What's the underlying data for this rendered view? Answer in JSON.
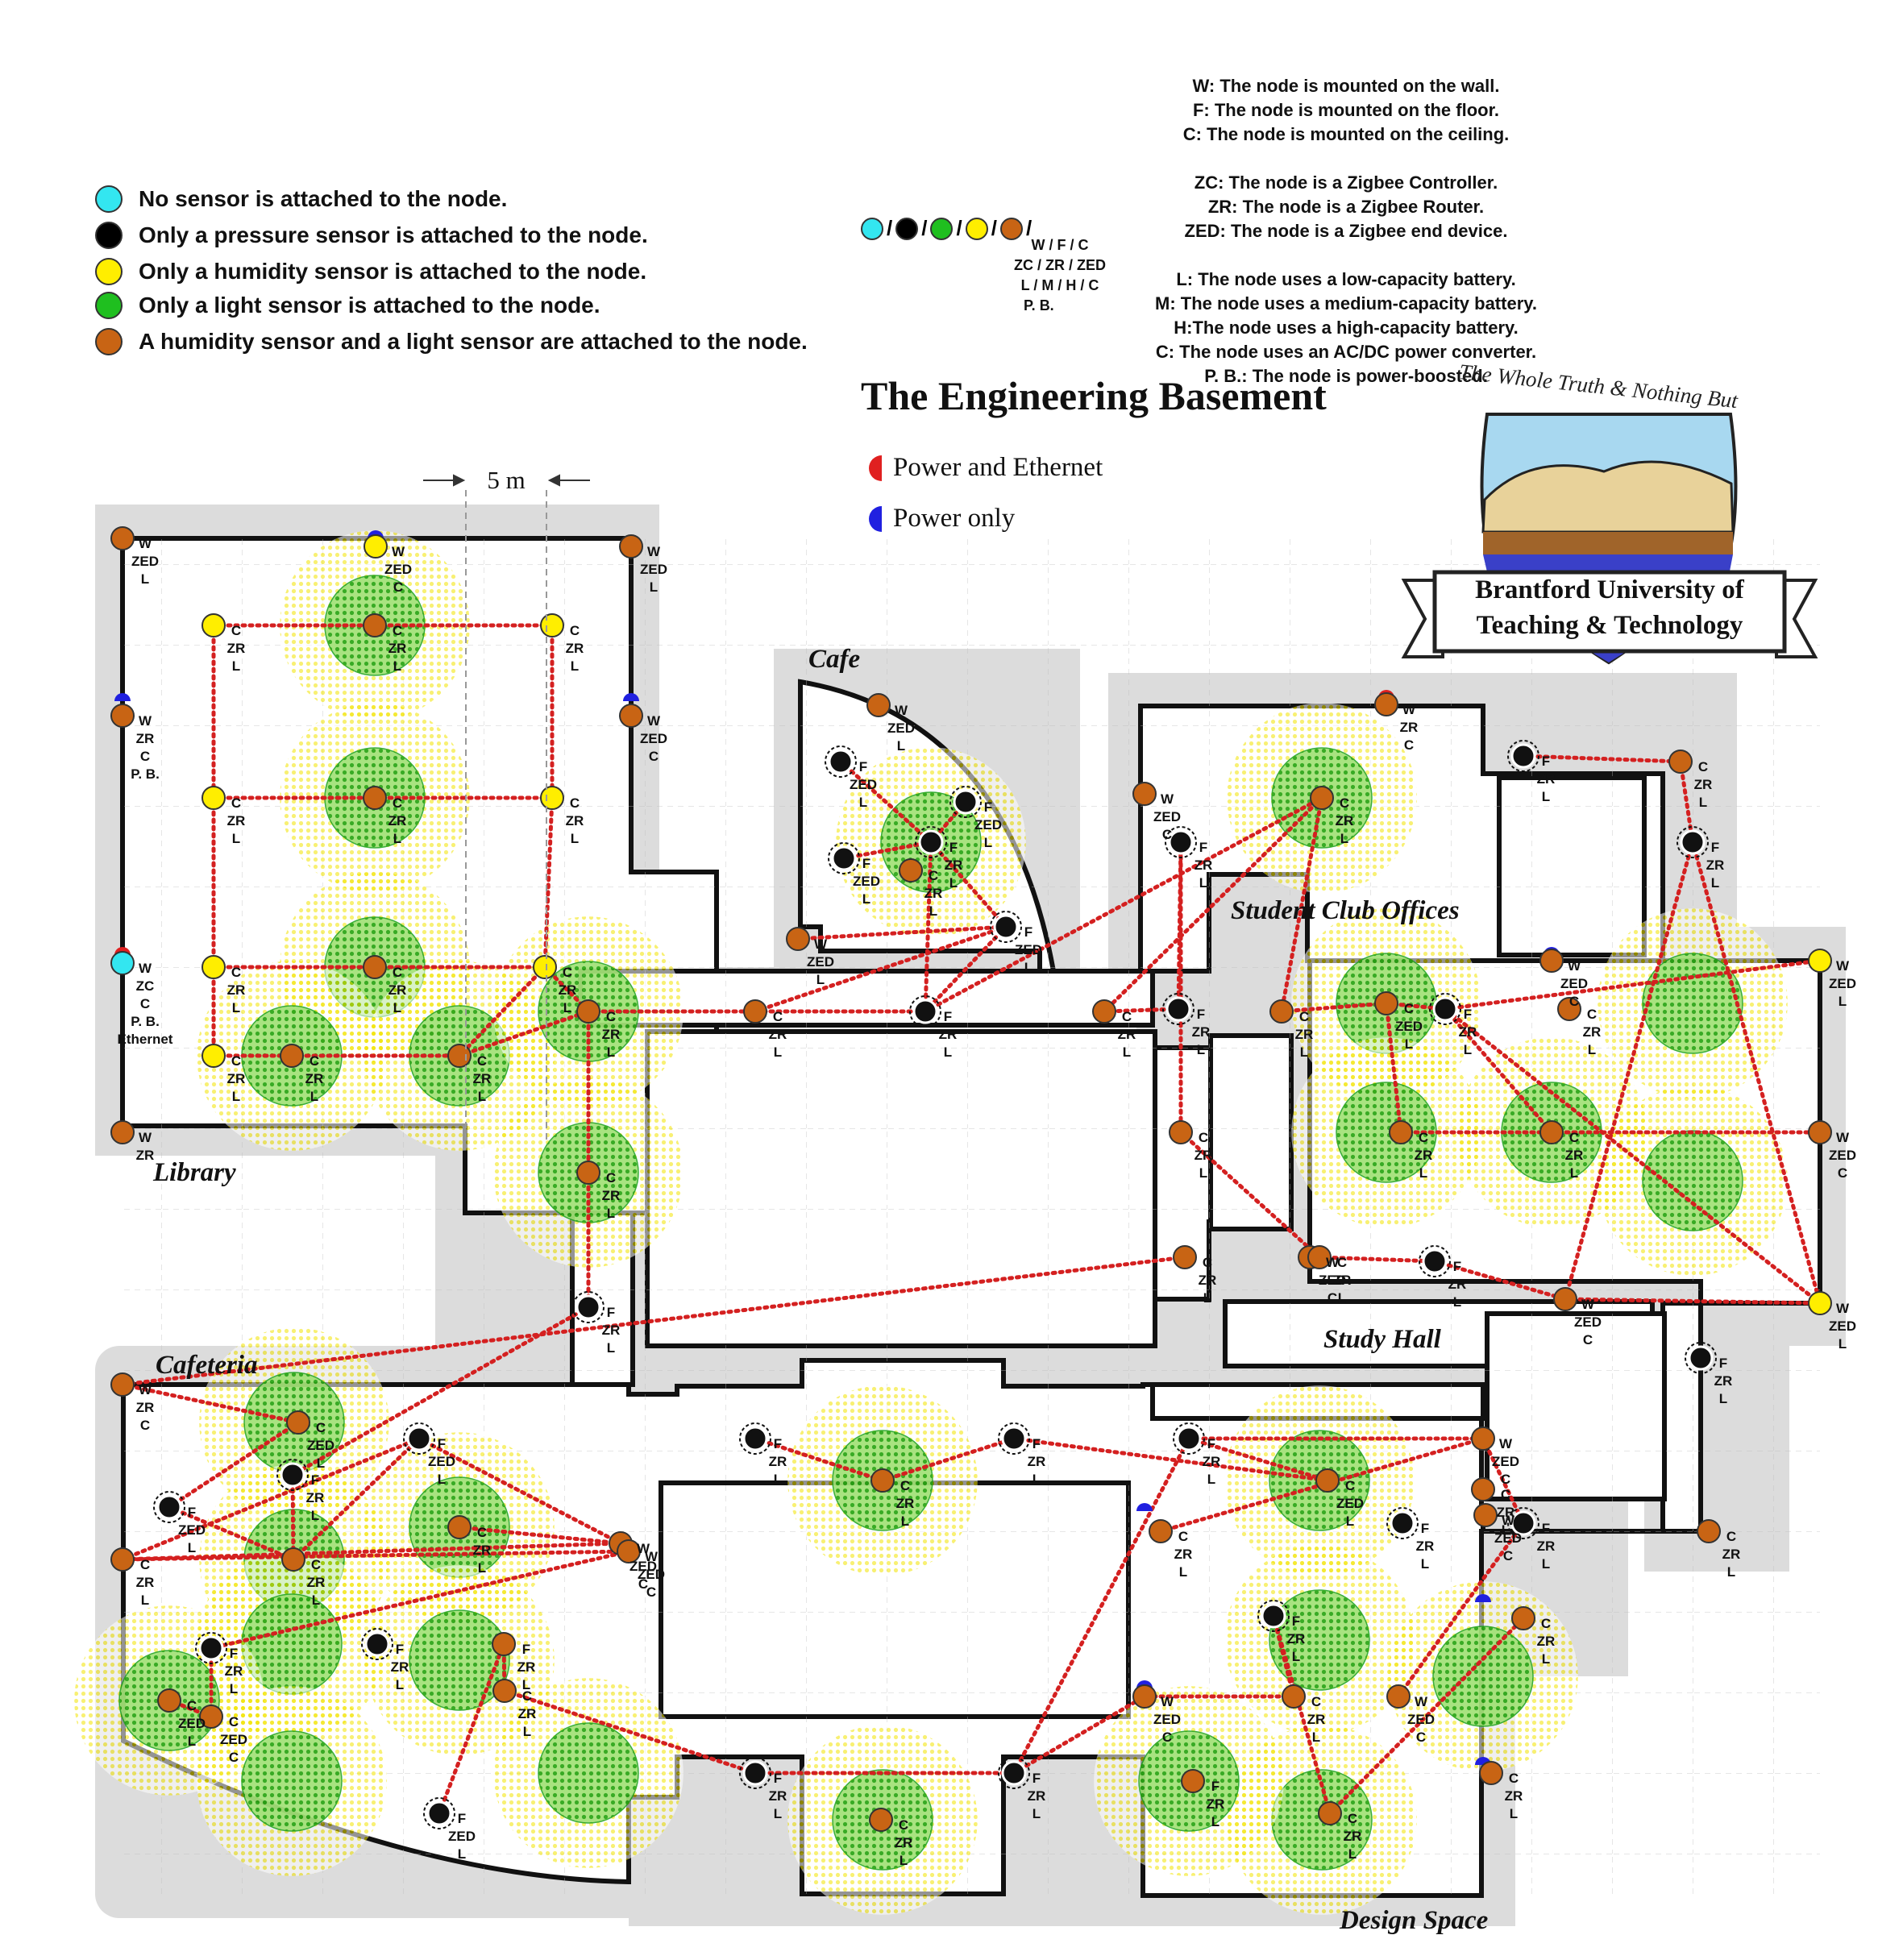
{
  "legend": {
    "items": [
      {
        "color": "#33e6f0",
        "text": "No sensor is attached to the node."
      },
      {
        "color": "#000000",
        "text": "Only a pressure sensor is attached to the node."
      },
      {
        "color": "#ffee00",
        "text": "Only a humidity sensor is attached to the node."
      },
      {
        "color": "#1fbf1f",
        "text": "Only a light sensor is attached to the node."
      },
      {
        "color": "#c86414",
        "text": "A humidity sensor and a light sensor are attached to the node."
      }
    ]
  },
  "key_symbol": {
    "sep": "/",
    "lines": [
      "W / F / C",
      "ZC / ZR / ZED",
      "L / M / H / C",
      "P. B."
    ]
  },
  "key_notes": [
    "W: The node is mounted on the wall.",
    "F: The node is mounted on the floor.",
    "C: The node is mounted on the ceiling.",
    "",
    "ZC: The node is a Zigbee Controller.",
    "ZR: The node is a Zigbee Router.",
    "ZED: The node is a Zigbee end device.",
    "",
    "L: The node uses a low-capacity battery.",
    "M: The node uses a medium-capacity battery.",
    "H:The node uses a high-capacity battery.",
    "C: The node uses an AC/DC power converter.",
    "P. B.: The node is power-boosted."
  ],
  "title": "The Engineering Basement",
  "power_legend": [
    {
      "color": "#e02020",
      "text": "Power and Ethernet"
    },
    {
      "color": "#2020e0",
      "text": "Power only"
    }
  ],
  "scale_label": "5 m",
  "logo": {
    "motto": "The Whole Truth & Nothing But",
    "line1": "Brantford University of",
    "line2": "Teaching & Technology"
  },
  "rooms": {
    "library": "Library",
    "cafe": "Cafe",
    "student_club": "Student Club Offices",
    "study_hall": "Study Hall",
    "cafeteria": "Cafeteria",
    "design_space": "Design Space"
  },
  "colors": {
    "wall": "#111111",
    "margin": "#dcdcdc",
    "link": "#d42020",
    "light_zone": "#1fbf1f",
    "humid_zone": "#ffee00"
  },
  "node_types": {
    "L": "l",
    "P": "p",
    "H": "h",
    "B": "b",
    "N": "n"
  },
  "nodes": [
    {
      "t": "B",
      "lines": [
        "W",
        "ZED",
        "L"
      ]
    },
    {
      "t": "H",
      "lines": [
        "W",
        "ZED",
        "C"
      ]
    },
    {
      "t": "B",
      "lines": [
        "W",
        "ZED",
        "L"
      ]
    },
    {
      "t": "H",
      "lines": [
        "C",
        "ZR",
        "L"
      ]
    },
    {
      "t": "B",
      "lines": [
        "C",
        "ZR",
        "L"
      ]
    },
    {
      "t": "H",
      "lines": [
        "C",
        "ZR",
        "L"
      ]
    },
    {
      "t": "B",
      "lines": [
        "W",
        "ZR",
        "C",
        "P. B."
      ]
    },
    {
      "t": "B",
      "lines": [
        "W",
        "ZED",
        "C"
      ]
    },
    {
      "t": "H",
      "lines": [
        "C",
        "ZR",
        "L"
      ]
    },
    {
      "t": "B",
      "lines": [
        "C",
        "ZR",
        "L"
      ]
    },
    {
      "t": "H",
      "lines": [
        "C",
        "ZR",
        "L"
      ]
    },
    {
      "t": "N",
      "lines": [
        "W",
        "ZC",
        "C",
        "P. B.",
        "Ethernet"
      ]
    },
    {
      "t": "H",
      "lines": [
        "C",
        "ZR",
        "L"
      ]
    },
    {
      "t": "B",
      "lines": [
        "C",
        "ZR",
        "L"
      ]
    },
    {
      "t": "H",
      "lines": [
        "C",
        "ZR",
        "L"
      ]
    },
    {
      "t": "B",
      "lines": [
        "C",
        "ZR",
        "L"
      ]
    },
    {
      "t": "H",
      "lines": [
        "C",
        "ZR",
        "L"
      ]
    },
    {
      "t": "B",
      "lines": [
        "C",
        "ZR",
        "L"
      ]
    },
    {
      "t": "B",
      "lines": [
        "C",
        "ZR",
        "L"
      ]
    },
    {
      "t": "B",
      "lines": [
        "W",
        "ZR"
      ]
    },
    {
      "t": "B",
      "lines": [
        "C",
        "ZR",
        "L"
      ]
    },
    {
      "t": "P",
      "lines": [
        "F",
        "ZR",
        "L"
      ]
    },
    {
      "t": "B",
      "lines": [
        "C",
        "ZR",
        "L"
      ]
    },
    {
      "t": "B",
      "lines": [
        "W",
        "ZED",
        "L"
      ]
    },
    {
      "t": "P",
      "lines": [
        "F",
        "ZED",
        "L"
      ]
    },
    {
      "t": "P",
      "lines": [
        "F",
        "ZED",
        "L"
      ]
    },
    {
      "t": "P",
      "lines": [
        "F",
        "ZED",
        "L"
      ]
    },
    {
      "t": "P",
      "lines": [
        "F",
        "ZR",
        "L"
      ]
    },
    {
      "t": "B",
      "lines": [
        "C",
        "ZR",
        "L"
      ]
    },
    {
      "t": "B",
      "lines": [
        "W",
        "ZED",
        "L"
      ]
    },
    {
      "t": "P",
      "lines": [
        "F",
        "ZED",
        "L"
      ]
    },
    {
      "t": "P",
      "lines": [
        "F",
        "ZR",
        "L"
      ]
    },
    {
      "t": "B",
      "lines": [
        "W",
        "ZR",
        "C"
      ]
    },
    {
      "t": "P",
      "lines": [
        "F",
        "ZR",
        "L"
      ]
    },
    {
      "t": "B",
      "lines": [
        "C",
        "ZR",
        "L"
      ]
    },
    {
      "t": "B",
      "lines": [
        "W",
        "ZED",
        "C"
      ]
    },
    {
      "t": "P",
      "lines": [
        "F",
        "ZR",
        "L"
      ]
    },
    {
      "t": "B",
      "lines": [
        "C",
        "ZR",
        "L"
      ]
    },
    {
      "t": "P",
      "lines": [
        "F",
        "ZR",
        "L"
      ]
    },
    {
      "t": "P",
      "lines": [
        "F",
        "ZR",
        "L"
      ]
    },
    {
      "t": "B",
      "lines": [
        "C",
        "ZR",
        "L"
      ]
    },
    {
      "t": "B",
      "lines": [
        "C",
        "ZR",
        "L"
      ]
    },
    {
      "t": "B",
      "lines": [
        "C",
        "ZR",
        "L"
      ]
    },
    {
      "t": "B",
      "lines": [
        "C",
        "ZED",
        "L"
      ]
    },
    {
      "t": "P",
      "lines": [
        "F",
        "ZR",
        "L"
      ]
    },
    {
      "t": "B",
      "lines": [
        "W",
        "ZED",
        "C"
      ]
    },
    {
      "t": "B",
      "lines": [
        "C",
        "ZR",
        "L"
      ]
    },
    {
      "t": "H",
      "lines": [
        "W",
        "ZED",
        "L"
      ]
    },
    {
      "t": "B",
      "lines": [
        "W",
        "ZED",
        "C"
      ]
    },
    {
      "t": "B",
      "lines": [
        "C",
        "ZR",
        "L"
      ]
    },
    {
      "t": "B",
      "lines": [
        "C",
        "ZR",
        "L"
      ]
    },
    {
      "t": "B",
      "lines": [
        "W",
        "ZED",
        "C"
      ]
    },
    {
      "t": "B",
      "lines": [
        "C",
        "ZR",
        "L"
      ]
    },
    {
      "t": "P",
      "lines": [
        "F",
        "ZR",
        "L"
      ]
    },
    {
      "t": "B",
      "lines": [
        "W",
        "ZED",
        "C"
      ]
    },
    {
      "t": "H",
      "lines": [
        "W",
        "ZED",
        "L"
      ]
    },
    {
      "t": "P",
      "lines": [
        "F",
        "ZR",
        "L"
      ]
    },
    {
      "t": "B",
      "lines": [
        "C",
        "ZR",
        "L"
      ]
    },
    {
      "t": "B",
      "lines": [
        "W",
        "ZR",
        "C"
      ]
    },
    {
      "t": "B",
      "lines": [
        "C",
        "ZED",
        "L"
      ]
    },
    {
      "t": "P",
      "lines": [
        "F",
        "ZED",
        "L"
      ]
    },
    {
      "t": "P",
      "lines": [
        "F",
        "ZR",
        "L"
      ]
    },
    {
      "t": "B",
      "lines": [
        "C",
        "ZR",
        "L"
      ]
    },
    {
      "t": "P",
      "lines": [
        "F",
        "ZED",
        "L"
      ]
    },
    {
      "t": "B",
      "lines": [
        "C",
        "ZR",
        "L"
      ]
    },
    {
      "t": "B",
      "lines": [
        "W",
        "ZED",
        "C"
      ]
    },
    {
      "t": "B",
      "lines": [
        "C",
        "ZR",
        "L"
      ]
    },
    {
      "t": "P",
      "lines": [
        "F",
        "ZR",
        "L"
      ]
    },
    {
      "t": "P",
      "lines": [
        "F",
        "ZR",
        "L"
      ]
    },
    {
      "t": "B",
      "lines": [
        "W",
        "ZED",
        "C"
      ]
    },
    {
      "t": "B",
      "lines": [
        "C",
        "ZED",
        "C"
      ]
    },
    {
      "t": "B",
      "lines": [
        "C",
        "ZED",
        "L"
      ]
    },
    {
      "t": "P",
      "lines": [
        "F",
        "ZED",
        "L"
      ]
    },
    {
      "t": "B",
      "lines": [
        "F",
        "ZR",
        "L"
      ]
    },
    {
      "t": "B",
      "lines": [
        "C",
        "ZR",
        "L"
      ]
    },
    {
      "t": "P",
      "lines": [
        "F",
        "ZR",
        "L"
      ]
    },
    {
      "t": "B",
      "lines": [
        "C",
        "ZR",
        "L"
      ]
    },
    {
      "t": "P",
      "lines": [
        "F",
        "ZR",
        "L"
      ]
    },
    {
      "t": "P",
      "lines": [
        "F",
        "ZR",
        "L"
      ]
    },
    {
      "t": "B",
      "lines": [
        "C",
        "ZR",
        "L"
      ]
    },
    {
      "t": "P",
      "lines": [
        "F",
        "ZR",
        "L"
      ]
    },
    {
      "t": "P",
      "lines": [
        "F",
        "ZR",
        "L"
      ]
    },
    {
      "t": "B",
      "lines": [
        "C",
        "ZED",
        "L"
      ]
    },
    {
      "t": "B",
      "lines": [
        "W",
        "ZED",
        "C"
      ]
    },
    {
      "t": "B",
      "lines": [
        "C",
        "ZR",
        "L"
      ]
    },
    {
      "t": "P",
      "lines": [
        "F",
        "ZR",
        "L"
      ]
    },
    {
      "t": "P",
      "lines": [
        "F",
        "ZR",
        "L"
      ]
    },
    {
      "t": "B",
      "lines": [
        "C",
        "ZR",
        "L"
      ]
    },
    {
      "t": "B",
      "lines": [
        "W",
        "ZED",
        "C"
      ]
    },
    {
      "t": "B",
      "lines": [
        "W",
        "ZED",
        "C"
      ]
    },
    {
      "t": "B",
      "lines": [
        "C",
        "ZR",
        "L"
      ]
    },
    {
      "t": "B",
      "lines": [
        "F",
        "ZR",
        "L"
      ]
    },
    {
      "t": "B",
      "lines": [
        "C",
        "ZR",
        "L"
      ]
    },
    {
      "t": "B",
      "lines": [
        "C",
        "ZR",
        "L"
      ]
    },
    {
      "t": "B",
      "lines": [
        "W",
        "ZED",
        "C"
      ]
    },
    {
      "t": "B",
      "lines": [
        "C",
        "ZR",
        "L"
      ]
    },
    {
      "t": "P",
      "lines": [
        "F",
        "ZR",
        "L"
      ]
    },
    {
      "t": "B",
      "lines": [
        "C",
        "ZR",
        "L"
      ]
    }
  ]
}
